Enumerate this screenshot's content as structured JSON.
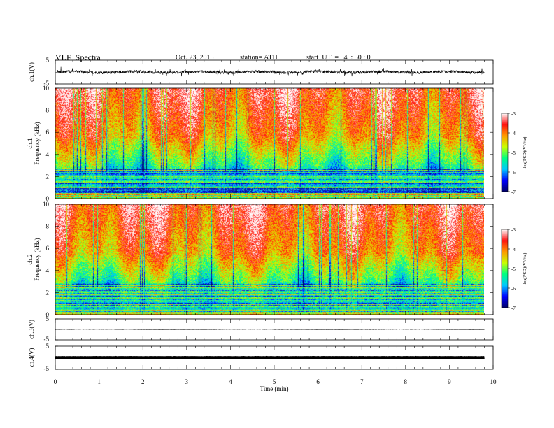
{
  "header": {
    "title": "VLF  Spectra",
    "date": "Oct. 23, 2015",
    "station": "station= ATH",
    "start": "start  UT  =   4  : 50 : 0"
  },
  "chart_data": [
    {
      "type": "line",
      "panel": "ch1-waveform",
      "ylabel": "ch.1(V)",
      "ylim": [
        -5,
        5
      ],
      "yticks": [
        "5",
        "-5"
      ],
      "xlim": [
        0,
        10
      ],
      "description_values": {
        "baseline": 0,
        "amplitude_range": [
          -1.5,
          1.5
        ]
      }
    },
    {
      "type": "heatmap",
      "panel": "ch1-spectrogram",
      "ylabel": "ch.1\nFrequency  (kHz)",
      "ylim": [
        0,
        10
      ],
      "yticks": [
        "0",
        "2",
        "4",
        "6",
        "8",
        "10"
      ],
      "xlim": [
        0,
        9.8
      ],
      "colorbar": {
        "label": "log(PSD)(V²/Hz)",
        "range": [
          -7,
          -3
        ],
        "ticks": [
          "-3",
          "-4",
          "-5",
          "-6",
          "-7"
        ]
      }
    },
    {
      "type": "heatmap",
      "panel": "ch2-spectrogram",
      "ylabel": "ch.2\nFrequency  (kHz)",
      "ylim": [
        0,
        10
      ],
      "yticks": [
        "0",
        "2",
        "4",
        "6",
        "8",
        "10"
      ],
      "xlim": [
        0,
        9.8
      ],
      "colorbar": {
        "label": "log(PSD)(V²/Hz)",
        "range": [
          -7,
          -3
        ],
        "ticks": [
          "-3",
          "-4",
          "-5",
          "-6",
          "-7"
        ]
      }
    },
    {
      "type": "line",
      "panel": "ch3-waveform",
      "ylabel": "ch.3(V)",
      "ylim": [
        -5,
        5
      ],
      "yticks": [
        "5",
        "-5"
      ],
      "xlim": [
        0,
        10
      ],
      "description_values": {
        "baseline": 0,
        "amplitude_range": [
          -0.1,
          0.1
        ]
      }
    },
    {
      "type": "line",
      "panel": "ch4-waveform",
      "ylabel": "ch.4(V)",
      "ylim": [
        -5,
        5
      ],
      "yticks": [
        "5",
        "-5"
      ],
      "xlim": [
        0,
        10
      ],
      "description_values": {
        "baseline": 0,
        "amplitude_range": [
          -0.3,
          0.3
        ]
      }
    }
  ],
  "xaxis": {
    "label": "Time  (min)",
    "ticks": [
      "0",
      "1",
      "2",
      "3",
      "4",
      "5",
      "6",
      "7",
      "8",
      "9",
      "10"
    ],
    "range": [
      0,
      10
    ]
  },
  "colors": {
    "scale": [
      "#000066",
      "#0000ff",
      "#00c8ff",
      "#00ff80",
      "#c8ff00",
      "#ff9900",
      "#ff1010",
      "#ffffff"
    ]
  }
}
